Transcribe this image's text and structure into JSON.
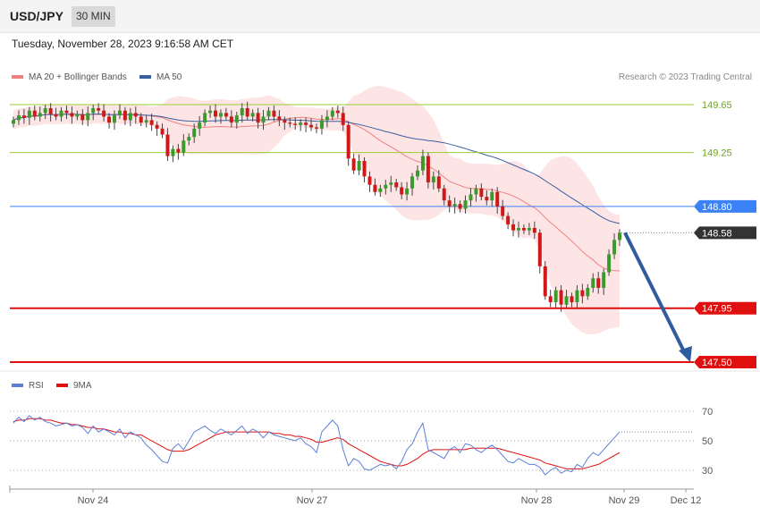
{
  "header": {
    "pair": "USD/JPY",
    "timeframe": "30 MIN",
    "datetime": "Tuesday, November 28, 2023 9:16:58 AM CET"
  },
  "legend": {
    "ma20_label": "MA 20 + Bollinger Bands",
    "ma20_color": "#f08080",
    "ma50_label": "MA 50",
    "ma50_color": "#3a5fa0",
    "copyright": "Research © 2023 Trading Central"
  },
  "rsi_legend": {
    "rsi_label": "RSI",
    "rsi_color": "#5b7fd6",
    "ma9_label": "9MA",
    "ma9_color": "#e01010"
  },
  "chart_data": {
    "type": "candlestick",
    "x_ticks": [
      "Nov 24",
      "Nov 27",
      "Nov 28",
      "Nov 29",
      "Dec 12"
    ],
    "ylim": [
      147.4,
      149.85
    ],
    "levels": [
      {
        "label": "149.65",
        "value": 149.65,
        "kind": "resistance",
        "color": "#9acd32"
      },
      {
        "label": "149.25",
        "value": 149.25,
        "kind": "resistance",
        "color": "#9acd32"
      },
      {
        "label": "148.80",
        "value": 148.8,
        "kind": "pivot",
        "color": "#3b82f6"
      },
      {
        "label": "148.58",
        "value": 148.58,
        "kind": "last",
        "color": "#333333"
      },
      {
        "label": "147.95",
        "value": 147.95,
        "kind": "support",
        "color": "#e01010"
      },
      {
        "label": "147.50",
        "value": 147.5,
        "kind": "support",
        "color": "#e01010"
      }
    ],
    "forecast_arrow": {
      "from": 148.58,
      "to": 147.5,
      "color": "#2f5c9e"
    },
    "price_closes": [
      149.52,
      149.56,
      149.54,
      149.6,
      149.55,
      149.58,
      149.62,
      149.57,
      149.55,
      149.6,
      149.58,
      149.55,
      149.57,
      149.52,
      149.58,
      149.62,
      149.6,
      149.55,
      149.5,
      149.56,
      149.6,
      149.52,
      149.58,
      149.55,
      149.5,
      149.52,
      149.48,
      149.45,
      149.4,
      149.22,
      149.28,
      149.25,
      149.35,
      149.38,
      149.45,
      149.5,
      149.58,
      149.6,
      149.55,
      149.58,
      149.55,
      149.5,
      149.56,
      149.62,
      149.55,
      149.58,
      149.5,
      149.55,
      149.6,
      149.55,
      149.52,
      149.5,
      149.49,
      149.48,
      149.5,
      149.48,
      149.46,
      149.45,
      149.52,
      149.55,
      149.6,
      149.58,
      149.48,
      149.2,
      149.1,
      149.18,
      149.05,
      148.98,
      148.92,
      148.95,
      148.98,
      149.0,
      148.96,
      148.9,
      148.95,
      149.05,
      149.1,
      149.22,
      149.0,
      149.05,
      148.95,
      148.85,
      148.8,
      148.82,
      148.78,
      148.85,
      148.9,
      148.95,
      148.88,
      148.85,
      148.92,
      148.8,
      148.72,
      148.65,
      148.6,
      148.62,
      148.6,
      148.62,
      148.58,
      148.3,
      148.05,
      148.0,
      148.1,
      147.98,
      148.05,
      148.0,
      148.1,
      148.05,
      148.12,
      148.2,
      148.12,
      148.25,
      148.4,
      148.52,
      148.58
    ],
    "rsi": {
      "levels": [
        70,
        50,
        30
      ],
      "ylim": [
        20,
        78
      ],
      "rsi_values": [
        62,
        66,
        63,
        67,
        64,
        66,
        63,
        62,
        60,
        61,
        62,
        60,
        61,
        59,
        55,
        60,
        56,
        58,
        56,
        54,
        58,
        52,
        56,
        54,
        52,
        47,
        44,
        40,
        36,
        35,
        45,
        48,
        44,
        50,
        56,
        58,
        60,
        57,
        55,
        58,
        56,
        54,
        57,
        60,
        55,
        58,
        56,
        52,
        56,
        54,
        53,
        52,
        51,
        50,
        52,
        48,
        46,
        42,
        56,
        60,
        64,
        60,
        44,
        33,
        38,
        36,
        31,
        30,
        32,
        34,
        33,
        34,
        31,
        36,
        44,
        48,
        56,
        62,
        44,
        42,
        40,
        38,
        44,
        46,
        42,
        48,
        47,
        44,
        42,
        45,
        47,
        44,
        40,
        36,
        35,
        38,
        36,
        34,
        34,
        32,
        27,
        30,
        32,
        28,
        30,
        29,
        34,
        32,
        38,
        42,
        40,
        44,
        48,
        52,
        56
      ],
      "ma9_values": [
        63,
        64,
        64,
        65,
        65,
        65,
        64,
        64,
        63,
        62,
        62,
        61,
        61,
        60,
        59,
        59,
        58,
        58,
        57,
        56,
        56,
        55,
        55,
        54,
        54,
        52,
        50,
        48,
        46,
        44,
        43,
        43,
        43,
        44,
        46,
        48,
        50,
        52,
        54,
        55,
        56,
        56,
        56,
        56,
        56,
        56,
        56,
        56,
        56,
        55,
        55,
        54,
        54,
        53,
        53,
        52,
        51,
        49,
        49,
        50,
        51,
        52,
        51,
        48,
        46,
        44,
        42,
        40,
        38,
        36,
        35,
        34,
        33,
        33,
        34,
        36,
        38,
        41,
        43,
        44,
        44,
        44,
        44,
        44,
        44,
        44,
        45,
        45,
        45,
        45,
        45,
        45,
        44,
        43,
        42,
        41,
        40,
        39,
        38,
        37,
        35,
        34,
        33,
        32,
        31,
        31,
        31,
        31,
        32,
        33,
        34,
        36,
        38,
        40,
        42
      ]
    }
  }
}
